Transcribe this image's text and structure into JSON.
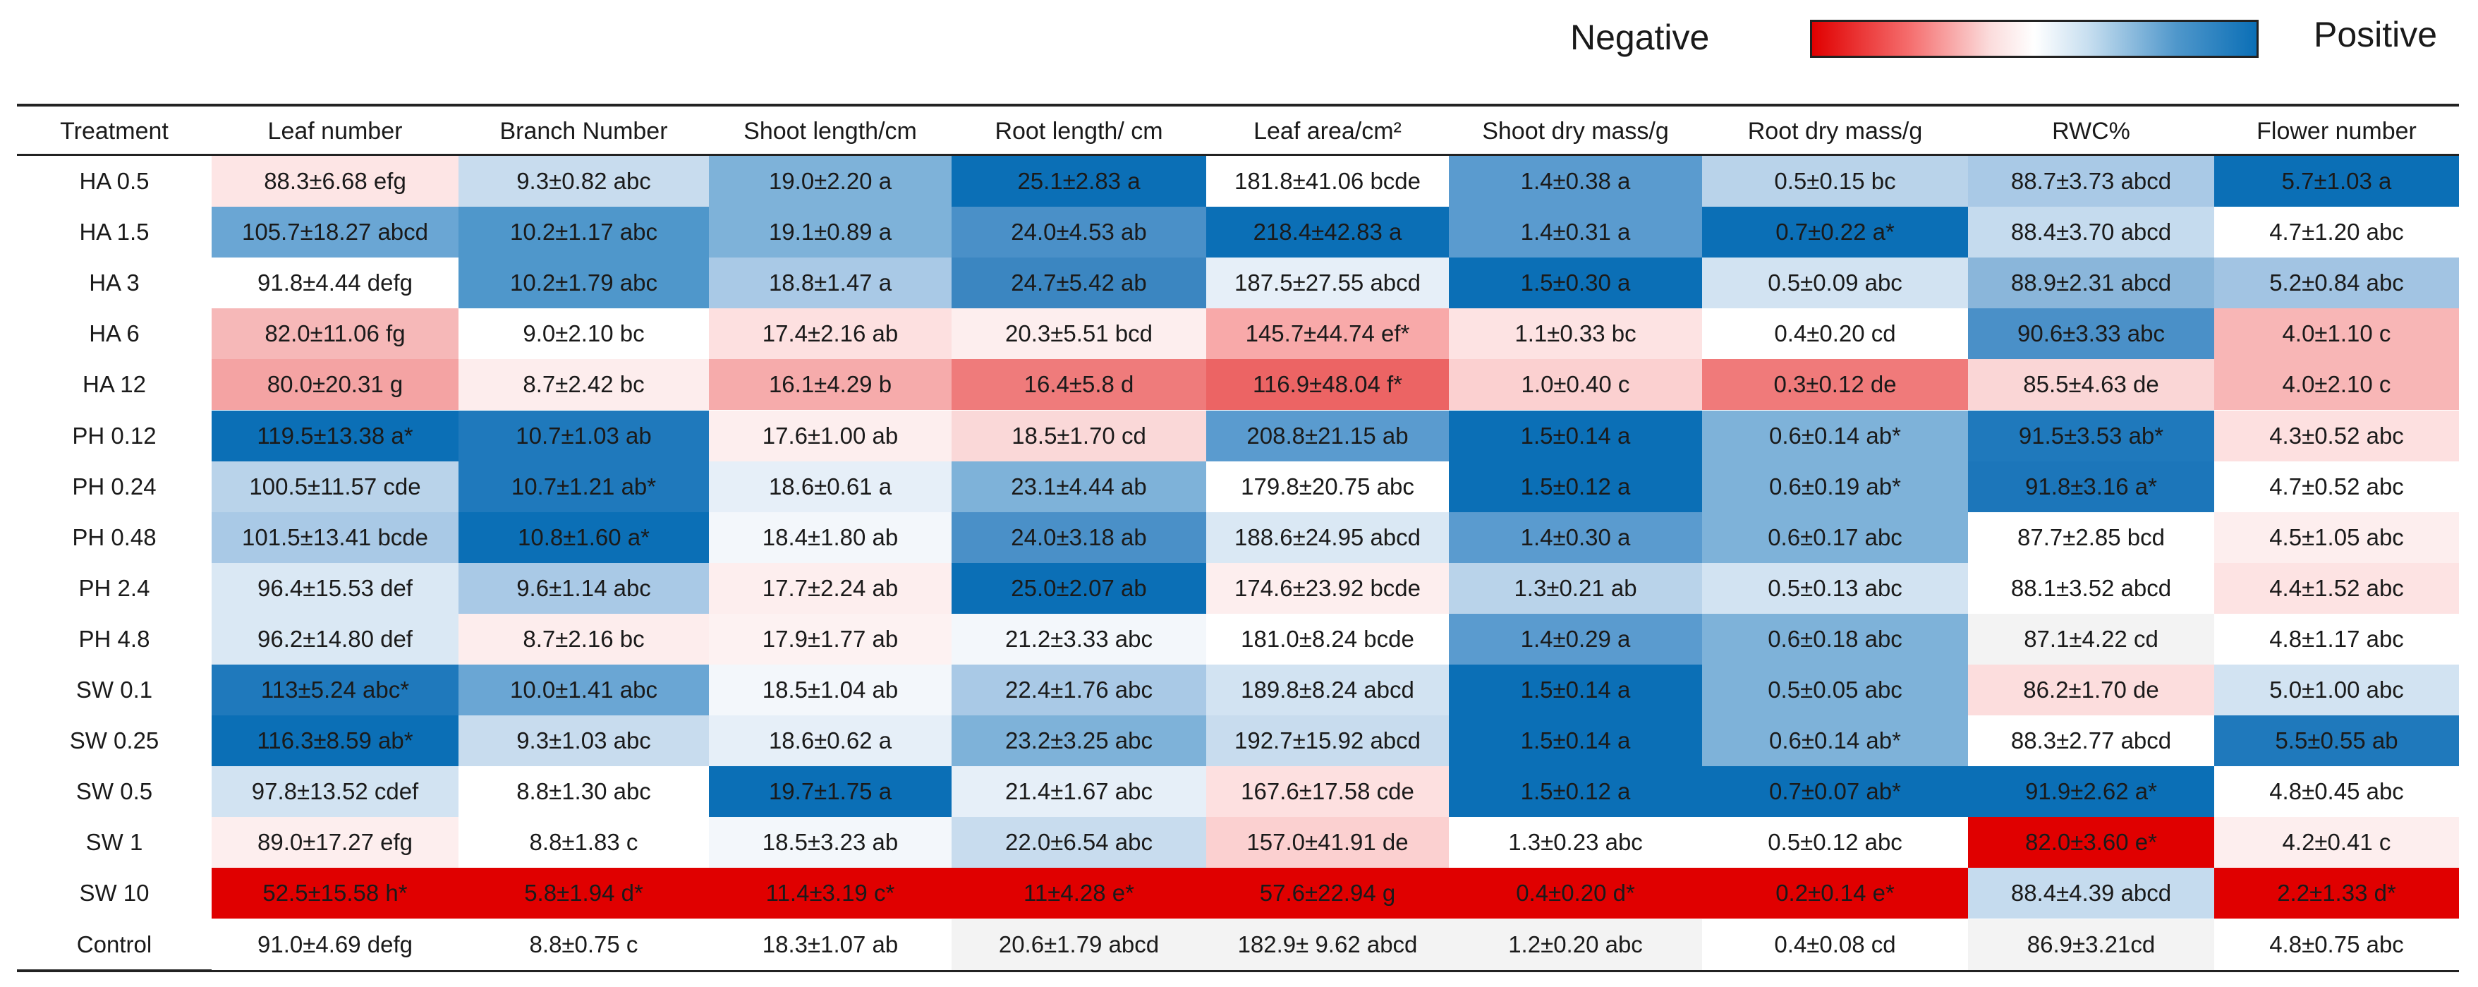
{
  "legend": {
    "negative_label": "Negative",
    "positive_label": "Positive",
    "negative_color": "#e00000",
    "neutral_color": "#ffffff",
    "positive_color": "#0b6fb6"
  },
  "chart_data": {
    "type": "table",
    "title": "",
    "columns": [
      "Treatment",
      "Leaf number",
      "Branch Number",
      "Shoot length/cm",
      "Root length/ cm",
      "Leaf area/cm²",
      "Shoot dry mass/g",
      "Root dry mass/g",
      "RWC%",
      "Flower number"
    ],
    "rows": [
      {
        "treatment": "HA 0.5",
        "cells": [
          {
            "text": "88.3±6.68 efg",
            "value": 88.3,
            "color": "#fde5e5"
          },
          {
            "text": "9.3±0.82 abc",
            "value": 9.3,
            "color": "#c8dcee"
          },
          {
            "text": "19.0±2.20 a",
            "value": 19.0,
            "color": "#7eb2d9"
          },
          {
            "text": "25.1±2.83 a",
            "value": 25.1,
            "color": "#0b6fb6"
          },
          {
            "text": "181.8±41.06 bcde",
            "value": 181.8,
            "color": "#ffffff"
          },
          {
            "text": "1.4±0.38 a",
            "value": 1.4,
            "color": "#5a9bcf"
          },
          {
            "text": "0.5±0.15 bc",
            "value": 0.5,
            "color": "#b9d3ea"
          },
          {
            "text": "88.7±3.73 abcd",
            "value": 88.7,
            "color": "#a9c9e6"
          },
          {
            "text": "5.7±1.03 a",
            "value": 5.7,
            "color": "#0b6fb6"
          }
        ]
      },
      {
        "treatment": "HA 1.5",
        "cells": [
          {
            "text": "105.7±18.27 abcd",
            "value": 105.7,
            "color": "#6aa6d4"
          },
          {
            "text": "10.2±1.17 abc",
            "value": 10.2,
            "color": "#4f97cb"
          },
          {
            "text": "19.1±0.89 a",
            "value": 19.1,
            "color": "#7eb2d9"
          },
          {
            "text": "24.0±4.53 ab",
            "value": 24.0,
            "color": "#4a90c8"
          },
          {
            "text": "218.4±42.83 a",
            "value": 218.4,
            "color": "#0b6fb6"
          },
          {
            "text": "1.4±0.31 a",
            "value": 1.4,
            "color": "#5a9bcf"
          },
          {
            "text": "0.7±0.22 a*",
            "value": 0.7,
            "color": "#0b6fb6"
          },
          {
            "text": "88.4±3.70 abcd",
            "value": 88.4,
            "color": "#c5dbee"
          },
          {
            "text": "4.7±1.20 abc",
            "value": 4.7,
            "color": "#ffffff"
          }
        ]
      },
      {
        "treatment": "HA 3",
        "cells": [
          {
            "text": "91.8±4.44 defg",
            "value": 91.8,
            "color": "#ffffff"
          },
          {
            "text": "10.2±1.79 abc",
            "value": 10.2,
            "color": "#4f97cb"
          },
          {
            "text": "18.8±1.47 a",
            "value": 18.8,
            "color": "#a9c9e6"
          },
          {
            "text": "24.7±5.42 ab",
            "value": 24.7,
            "color": "#3b86c1"
          },
          {
            "text": "187.5±27.55 abcd",
            "value": 187.5,
            "color": "#e6eff8"
          },
          {
            "text": "1.5±0.30 a",
            "value": 1.5,
            "color": "#0b6fb6"
          },
          {
            "text": "0.5±0.09 abc",
            "value": 0.5,
            "color": "#d2e3f2"
          },
          {
            "text": "88.9±2.31 abcd",
            "value": 88.9,
            "color": "#8ab6da"
          },
          {
            "text": "5.2±0.84 abc",
            "value": 5.2,
            "color": "#a2c4e3"
          }
        ]
      },
      {
        "treatment": "HA 6",
        "cells": [
          {
            "text": "82.0±11.06 fg",
            "value": 82.0,
            "color": "#f6b8b8"
          },
          {
            "text": "9.0±2.10 bc",
            "value": 9.0,
            "color": "#ffffff"
          },
          {
            "text": "17.4±2.16 ab",
            "value": 17.4,
            "color": "#fde0e0"
          },
          {
            "text": "20.3±5.51 bcd",
            "value": 20.3,
            "color": "#fdeeee"
          },
          {
            "text": "145.7±44.74 ef*",
            "value": 145.7,
            "color": "#f8a9a9"
          },
          {
            "text": "1.1±0.33 bc",
            "value": 1.1,
            "color": "#fde3e3"
          },
          {
            "text": "0.4±0.20 cd",
            "value": 0.4,
            "color": "#ffffff"
          },
          {
            "text": "90.6±3.33 abc",
            "value": 90.6,
            "color": "#4a90c8"
          },
          {
            "text": "4.0±1.10 c",
            "value": 4.0,
            "color": "#f8b6b6"
          }
        ]
      },
      {
        "treatment": "HA 12",
        "cells": [
          {
            "text": "80.0±20.31 g",
            "value": 80.0,
            "color": "#f4a3a3"
          },
          {
            "text": "8.7±2.42 bc",
            "value": 8.7,
            "color": "#fdeded"
          },
          {
            "text": "16.1±4.29 b",
            "value": 16.1,
            "color": "#f6abab"
          },
          {
            "text": "16.4±5.8 d",
            "value": 16.4,
            "color": "#ef7b7b"
          },
          {
            "text": "116.9±48.04 f*",
            "value": 116.9,
            "color": "#ec6464"
          },
          {
            "text": "1.0±0.40 c",
            "value": 1.0,
            "color": "#fbd0d0"
          },
          {
            "text": "0.3±0.12 de",
            "value": 0.3,
            "color": "#f07a7a"
          },
          {
            "text": "85.5±4.63 de",
            "value": 85.5,
            "color": "#fad6d6"
          },
          {
            "text": "4.0±2.10 c",
            "value": 4.0,
            "color": "#f8b6b6"
          }
        ]
      },
      {
        "treatment": "PH 0.12",
        "cells": [
          {
            "text": "119.5±13.38 a*",
            "value": 119.5,
            "color": "#0b6fb6"
          },
          {
            "text": "10.7±1.03 ab",
            "value": 10.7,
            "color": "#1f79bc"
          },
          {
            "text": "17.6±1.00 ab",
            "value": 17.6,
            "color": "#fdeeee"
          },
          {
            "text": "18.5±1.70 cd",
            "value": 18.5,
            "color": "#fad8d8"
          },
          {
            "text": "208.8±21.15 ab",
            "value": 208.8,
            "color": "#5a9bcf"
          },
          {
            "text": "1.5±0.14 a",
            "value": 1.5,
            "color": "#0b6fb6"
          },
          {
            "text": "0.6±0.14 ab*",
            "value": 0.6,
            "color": "#7eb2d9"
          },
          {
            "text": "91.5±3.53 ab*",
            "value": 91.5,
            "color": "#1f79bc"
          },
          {
            "text": "4.3±0.52 abc",
            "value": 4.3,
            "color": "#fde0e0"
          }
        ]
      },
      {
        "treatment": "PH 0.24",
        "cells": [
          {
            "text": "100.5±11.57 cde",
            "value": 100.5,
            "color": "#b9d3ea"
          },
          {
            "text": "10.7±1.21 ab*",
            "value": 10.7,
            "color": "#1f79bc"
          },
          {
            "text": "18.6±0.61 a",
            "value": 18.6,
            "color": "#e6eff8"
          },
          {
            "text": "23.1±4.44 ab",
            "value": 23.1,
            "color": "#7eb2d9"
          },
          {
            "text": "179.8±20.75 abc",
            "value": 179.8,
            "color": "#ffffff"
          },
          {
            "text": "1.5±0.12 a",
            "value": 1.5,
            "color": "#0b6fb6"
          },
          {
            "text": "0.6±0.19 ab*",
            "value": 0.6,
            "color": "#7eb2d9"
          },
          {
            "text": "91.8±3.16 a*",
            "value": 91.8,
            "color": "#1c76ba"
          },
          {
            "text": "4.7±0.52 abc",
            "value": 4.7,
            "color": "#ffffff"
          }
        ]
      },
      {
        "treatment": "PH 0.48",
        "cells": [
          {
            "text": "101.5±13.41 bcde",
            "value": 101.5,
            "color": "#a9c9e6"
          },
          {
            "text": "10.8±1.60 a*",
            "value": 10.8,
            "color": "#0b6fb6"
          },
          {
            "text": "18.4±1.80 ab",
            "value": 18.4,
            "color": "#f3f7fb"
          },
          {
            "text": "24.0±3.18 ab",
            "value": 24.0,
            "color": "#4a90c8"
          },
          {
            "text": "188.6±24.95 abcd",
            "value": 188.6,
            "color": "#dae8f4"
          },
          {
            "text": "1.4±0.30 a",
            "value": 1.4,
            "color": "#5a9bcf"
          },
          {
            "text": "0.6±0.17 abc",
            "value": 0.6,
            "color": "#7eb2d9"
          },
          {
            "text": "87.7±2.85 bcd",
            "value": 87.7,
            "color": "#ffffff"
          },
          {
            "text": "4.5±1.05 abc",
            "value": 4.5,
            "color": "#fdeeee"
          }
        ]
      },
      {
        "treatment": "PH 2.4",
        "cells": [
          {
            "text": "96.4±15.53 def",
            "value": 96.4,
            "color": "#dae8f4"
          },
          {
            "text": "9.6±1.14 abc",
            "value": 9.6,
            "color": "#a9c9e6"
          },
          {
            "text": "17.7±2.24 ab",
            "value": 17.7,
            "color": "#fdeeee"
          },
          {
            "text": "25.0±2.07 ab",
            "value": 25.0,
            "color": "#0b6fb6"
          },
          {
            "text": "174.6±23.92 bcde",
            "value": 174.6,
            "color": "#fdeeee"
          },
          {
            "text": "1.3±0.21 ab",
            "value": 1.3,
            "color": "#b9d3ea"
          },
          {
            "text": "0.5±0.13 abc",
            "value": 0.5,
            "color": "#d2e3f2"
          },
          {
            "text": "88.1±3.52 abcd",
            "value": 88.1,
            "color": "#ffffff"
          },
          {
            "text": "4.4±1.52 abc",
            "value": 4.4,
            "color": "#fde3e3"
          }
        ]
      },
      {
        "treatment": "PH 4.8",
        "cells": [
          {
            "text": "96.2±14.80 def",
            "value": 96.2,
            "color": "#dae8f4"
          },
          {
            "text": "8.7±2.16 bc",
            "value": 8.7,
            "color": "#fdeded"
          },
          {
            "text": "17.9±1.77 ab",
            "value": 17.9,
            "color": "#fdf2f2"
          },
          {
            "text": "21.2±3.33 abc",
            "value": 21.2,
            "color": "#f3f7fb"
          },
          {
            "text": "181.0±8.24 bcde",
            "value": 181.0,
            "color": "#ffffff"
          },
          {
            "text": "1.4±0.29 a",
            "value": 1.4,
            "color": "#5a9bcf"
          },
          {
            "text": "0.6±0.18 abc",
            "value": 0.6,
            "color": "#7eb2d9"
          },
          {
            "text": "87.1±4.22 cd",
            "value": 87.1,
            "color": "#f3f3f3"
          },
          {
            "text": "4.8±1.17 abc",
            "value": 4.8,
            "color": "#ffffff"
          }
        ]
      },
      {
        "treatment": "SW 0.1",
        "cells": [
          {
            "text": "113±5.24 abc*",
            "value": 113,
            "color": "#1f79bc"
          },
          {
            "text": "10.0±1.41 abc",
            "value": 10.0,
            "color": "#6aa6d4"
          },
          {
            "text": "18.5±1.04 ab",
            "value": 18.5,
            "color": "#f3f7fb"
          },
          {
            "text": "22.4±1.76 abc",
            "value": 22.4,
            "color": "#a9c9e6"
          },
          {
            "text": "189.8±8.24 abcd",
            "value": 189.8,
            "color": "#d2e3f2"
          },
          {
            "text": "1.5±0.14 a",
            "value": 1.5,
            "color": "#0b6fb6"
          },
          {
            "text": "0.5±0.05 abc",
            "value": 0.5,
            "color": "#7eb2d9"
          },
          {
            "text": "86.2±1.70 de",
            "value": 86.2,
            "color": "#fcdddd"
          },
          {
            "text": "5.0±1.00 abc",
            "value": 5.0,
            "color": "#d2e3f2"
          }
        ]
      },
      {
        "treatment": "SW 0.25",
        "cells": [
          {
            "text": "116.3±8.59 ab*",
            "value": 116.3,
            "color": "#0b6fb6"
          },
          {
            "text": "9.3±1.03 abc",
            "value": 9.3,
            "color": "#c8dcee"
          },
          {
            "text": "18.6±0.62 a",
            "value": 18.6,
            "color": "#e6eff8"
          },
          {
            "text": "23.2±3.25 abc",
            "value": 23.2,
            "color": "#7eb2d9"
          },
          {
            "text": "192.7±15.92 abcd",
            "value": 192.7,
            "color": "#c8dcee"
          },
          {
            "text": "1.5±0.14 a",
            "value": 1.5,
            "color": "#0b6fb6"
          },
          {
            "text": "0.6±0.14 ab*",
            "value": 0.6,
            "color": "#7eb2d9"
          },
          {
            "text": "88.3±2.77 abcd",
            "value": 88.3,
            "color": "#ffffff"
          },
          {
            "text": "5.5±0.55 ab",
            "value": 5.5,
            "color": "#1f79bc"
          }
        ]
      },
      {
        "treatment": "SW 0.5",
        "cells": [
          {
            "text": "97.8±13.52 cdef",
            "value": 97.8,
            "color": "#d2e3f2"
          },
          {
            "text": "8.8±1.30 abc",
            "value": 8.8,
            "color": "#ffffff"
          },
          {
            "text": "19.7±1.75 a",
            "value": 19.7,
            "color": "#0b6fb6"
          },
          {
            "text": "21.4±1.67 abc",
            "value": 21.4,
            "color": "#e6eff8"
          },
          {
            "text": "167.6±17.58 cde",
            "value": 167.6,
            "color": "#fde0e0"
          },
          {
            "text": "1.5±0.12 a",
            "value": 1.5,
            "color": "#0b6fb6"
          },
          {
            "text": "0.7±0.07 ab*",
            "value": 0.7,
            "color": "#0b6fb6"
          },
          {
            "text": "91.9±2.62 a*",
            "value": 91.9,
            "color": "#0b6fb6"
          },
          {
            "text": "4.8±0.45 abc",
            "value": 4.8,
            "color": "#ffffff"
          }
        ]
      },
      {
        "treatment": "SW 1",
        "cells": [
          {
            "text": "89.0±17.27 efg",
            "value": 89.0,
            "color": "#fdeeee"
          },
          {
            "text": "8.8±1.83 c",
            "value": 8.8,
            "color": "#ffffff"
          },
          {
            "text": "18.5±3.23 ab",
            "value": 18.5,
            "color": "#f3f7fb"
          },
          {
            "text": "22.0±6.54 abc",
            "value": 22.0,
            "color": "#c8dcee"
          },
          {
            "text": "157.0±41.91 de",
            "value": 157.0,
            "color": "#fbd0d0"
          },
          {
            "text": "1.3±0.23 abc",
            "value": 1.3,
            "color": "#ffffff"
          },
          {
            "text": "0.5±0.12 abc",
            "value": 0.5,
            "color": "#ffffff"
          },
          {
            "text": "82.0±3.60 e*",
            "value": 82.0,
            "color": "#e00000"
          },
          {
            "text": "4.2±0.41 c",
            "value": 4.2,
            "color": "#fdeeee"
          }
        ]
      },
      {
        "treatment": "SW 10",
        "cells": [
          {
            "text": "52.5±15.58 h*",
            "value": 52.5,
            "color": "#e00000"
          },
          {
            "text": "5.8±1.94 d*",
            "value": 5.8,
            "color": "#e00000"
          },
          {
            "text": "11.4±3.19 c*",
            "value": 11.4,
            "color": "#e00000"
          },
          {
            "text": "11±4.28 e*",
            "value": 11,
            "color": "#e00000"
          },
          {
            "text": "57.6±22.94 g",
            "value": 57.6,
            "color": "#e00000"
          },
          {
            "text": "0.4±0.20 d*",
            "value": 0.4,
            "color": "#e00000"
          },
          {
            "text": "0.2±0.14 e*",
            "value": 0.2,
            "color": "#e00000"
          },
          {
            "text": "88.4±4.39 abcd",
            "value": 88.4,
            "color": "#c5dbee"
          },
          {
            "text": "2.2±1.33 d*",
            "value": 2.2,
            "color": "#e00000"
          }
        ]
      },
      {
        "treatment": "Control",
        "cells": [
          {
            "text": "91.0±4.69 defg",
            "value": 91.0,
            "color": "#ffffff"
          },
          {
            "text": "8.8±0.75 c",
            "value": 8.8,
            "color": "#ffffff"
          },
          {
            "text": "18.3±1.07 ab",
            "value": 18.3,
            "color": "#ffffff"
          },
          {
            "text": "20.6±1.79 abcd",
            "value": 20.6,
            "color": "#f3f3f3"
          },
          {
            "text": "182.9± 9.62 abcd",
            "value": 182.9,
            "color": "#f3f3f3"
          },
          {
            "text": "1.2±0.20 abc",
            "value": 1.2,
            "color": "#f3f3f3"
          },
          {
            "text": "0.4±0.08 cd",
            "value": 0.4,
            "color": "#ffffff"
          },
          {
            "text": "86.9±3.21cd",
            "value": 86.9,
            "color": "#f3f3f3"
          },
          {
            "text": "4.8±0.75 abc",
            "value": 4.8,
            "color": "#ffffff"
          }
        ]
      }
    ]
  }
}
